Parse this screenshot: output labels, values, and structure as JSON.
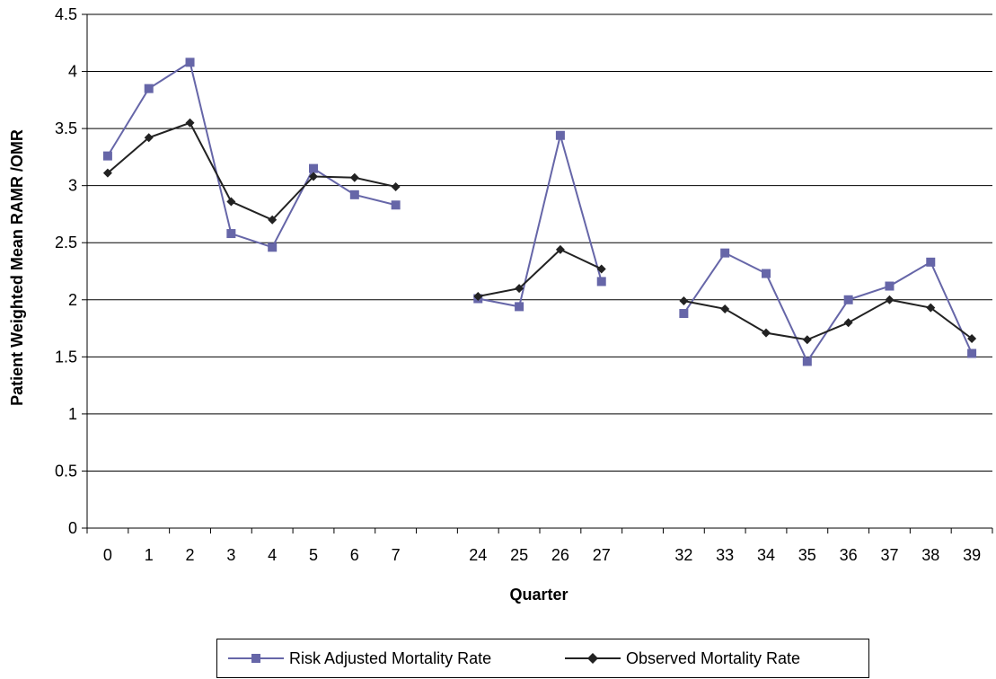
{
  "chart_data": {
    "type": "line",
    "xlabel": "Quarter",
    "ylabel": "Patient Weighted Mean RAMR /OMR",
    "ylim": [
      0,
      4.5
    ],
    "yticks": [
      "0",
      "0.5",
      "1",
      "1.5",
      "2",
      "2.5",
      "3",
      "3.5",
      "4",
      "4.5"
    ],
    "categories": [
      "0",
      "1",
      "2",
      "3",
      "4",
      "5",
      "6",
      "7",
      "",
      "24",
      "25",
      "26",
      "27",
      "",
      "32",
      "33",
      "34",
      "35",
      "36",
      "37",
      "38",
      "39"
    ],
    "grid": true,
    "legend_position": "bottom",
    "series": [
      {
        "name": "Risk Adjusted Mortality Rate",
        "color": "#6666a8",
        "marker": "square",
        "values": [
          3.26,
          3.85,
          4.08,
          2.58,
          2.46,
          3.15,
          2.92,
          2.83,
          null,
          2.01,
          1.94,
          3.44,
          2.16,
          null,
          1.88,
          2.41,
          2.23,
          1.46,
          2.0,
          2.12,
          2.33,
          1.53
        ]
      },
      {
        "name": "Observed Mortality Rate",
        "color": "#222222",
        "marker": "diamond",
        "values": [
          3.11,
          3.42,
          3.55,
          2.86,
          2.7,
          3.08,
          3.07,
          2.99,
          null,
          2.03,
          2.1,
          2.44,
          2.27,
          null,
          1.99,
          1.92,
          1.71,
          1.65,
          1.8,
          2.0,
          1.93,
          1.66
        ]
      }
    ]
  }
}
